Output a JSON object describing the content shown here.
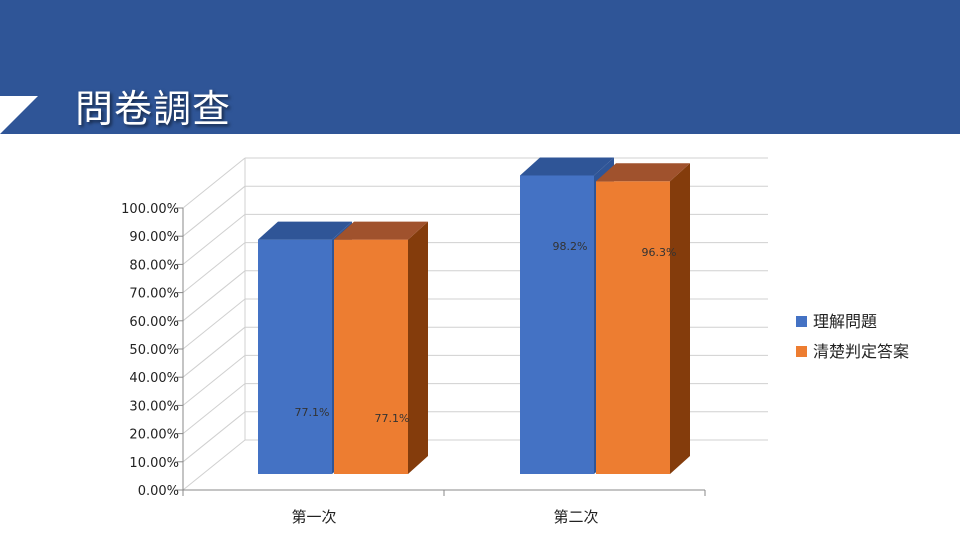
{
  "slide": {
    "title": "問卷調查"
  },
  "colors": {
    "header": "#2f5597",
    "series1": "#4472c4",
    "series1_top": "#2f5597",
    "series2": "#ed7d31",
    "series2_top": "#a0522d",
    "series2_side": "#843c0c"
  },
  "chart_data": {
    "type": "bar",
    "style": "3d-clustered-column",
    "categories": [
      "第一次",
      "第二次"
    ],
    "series": [
      {
        "name": "理解問題",
        "values": [
          77.1,
          98.2
        ],
        "labels": [
          "77.1%",
          "98.2%"
        ]
      },
      {
        "name": "清楚判定答案",
        "values": [
          77.1,
          96.3
        ],
        "labels": [
          "77.1%",
          "96.3%"
        ]
      }
    ],
    "ylim": [
      0,
      100
    ],
    "yticks": [
      "0.00%",
      "10.00%",
      "20.00%",
      "30.00%",
      "40.00%",
      "50.00%",
      "60.00%",
      "70.00%",
      "80.00%",
      "90.00%",
      "100.00%"
    ],
    "grid": true,
    "legend": "right"
  }
}
